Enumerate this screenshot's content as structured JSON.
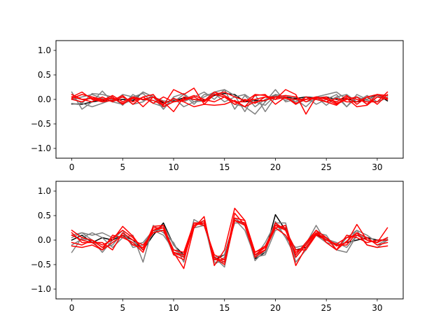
{
  "chart_data": [
    {
      "type": "line",
      "title": "",
      "xlabel": "",
      "ylabel": "",
      "xlim": [
        -1.55,
        32.55
      ],
      "ylim": [
        -1.2,
        1.2
      ],
      "xticks": [
        0,
        5,
        10,
        15,
        20,
        25,
        30
      ],
      "yticks": [
        -1.0,
        -0.5,
        0.0,
        0.5,
        1.0
      ],
      "x": [
        0,
        1,
        2,
        3,
        4,
        5,
        6,
        7,
        8,
        9,
        10,
        11,
        12,
        13,
        14,
        15,
        16,
        17,
        18,
        19,
        20,
        21,
        22,
        23,
        24,
        25,
        26,
        27,
        28,
        29,
        30,
        31
      ],
      "grid": false,
      "legend": "none",
      "series": [
        {
          "color": "#000000",
          "values": [
            -0.09,
            -0.1,
            -0.05,
            -0.02,
            -0.03,
            0.0,
            -0.03,
            0.15,
            0.05,
            -0.07,
            -0.03,
            0.03,
            0.0,
            -0.02,
            0.08,
            0.12,
            0.1,
            -0.05,
            -0.02,
            -0.03,
            0.1,
            0.05,
            0.02,
            0.05,
            0.03,
            0.05,
            0.0,
            0.02,
            -0.05,
            0.0,
            0.1,
            -0.03
          ]
        },
        {
          "color": "#808080",
          "values": [
            0.15,
            -0.2,
            -0.05,
            0.17,
            -0.05,
            -0.1,
            0.0,
            0.15,
            0.05,
            -0.2,
            0.03,
            -0.15,
            -0.05,
            0.05,
            0.15,
            0.2,
            0.08,
            -0.25,
            0.1,
            -0.25,
            0.05,
            0.03,
            -0.05,
            0.05,
            -0.1,
            0.0,
            0.1,
            -0.15,
            0.05,
            -0.1,
            0.05,
            0.08
          ]
        },
        {
          "color": "#808080",
          "values": [
            -0.1,
            -0.08,
            0.12,
            0.1,
            0.05,
            -0.12,
            0.1,
            -0.02,
            0.05,
            -0.03,
            -0.05,
            0.1,
            -0.1,
            0.1,
            0.1,
            0.05,
            -0.1,
            -0.15,
            -0.3,
            -0.05,
            0.2,
            -0.05,
            0.0,
            -0.15,
            0.05,
            0.1,
            0.15,
            0.0,
            0.05,
            -0.02,
            -0.05,
            0.03
          ]
        },
        {
          "color": "#808080",
          "values": [
            0.05,
            -0.08,
            -0.15,
            -0.08,
            0.0,
            0.05,
            -0.1,
            -0.05,
            0.1,
            -0.2,
            0.05,
            0.12,
            -0.05,
            -0.03,
            0.12,
            -0.05,
            0.05,
            0.1,
            -0.05,
            -0.12,
            0.08,
            -0.02,
            0.05,
            -0.05,
            0.0,
            -0.05,
            0.05,
            -0.15,
            0.1,
            0.0,
            0.08,
            0.0
          ]
        },
        {
          "color": "#808080",
          "values": [
            0.0,
            0.05,
            0.1,
            0.02,
            -0.05,
            0.1,
            0.05,
            0.12,
            -0.08,
            -0.15,
            0.0,
            -0.05,
            0.05,
            0.15,
            0.0,
            0.2,
            -0.2,
            0.08,
            -0.15,
            0.0,
            0.1,
            0.05,
            -0.1,
            0.0,
            0.05,
            -0.12,
            0.05,
            0.1,
            -0.05,
            0.08,
            -0.05,
            0.05
          ]
        },
        {
          "color": "#ff0000",
          "values": [
            0.05,
            0.15,
            0.0,
            -0.05,
            -0.02,
            0.08,
            -0.1,
            0.05,
            0.1,
            -0.15,
            -0.05,
            -0.02,
            0.05,
            -0.05,
            0.1,
            0.15,
            0.05,
            -0.02,
            0.0,
            0.05,
            0.05,
            0.08,
            0.05,
            -0.05,
            0.05,
            -0.05,
            0.02,
            -0.05,
            -0.05,
            0.05,
            0.1,
            0.08
          ]
        },
        {
          "color": "#ff0000",
          "values": [
            0.02,
            0.1,
            0.05,
            -0.05,
            0.05,
            -0.1,
            0.05,
            -0.15,
            0.05,
            -0.05,
            -0.25,
            0.05,
            0.0,
            -0.03,
            0.15,
            0.08,
            -0.05,
            -0.05,
            0.1,
            0.08,
            0.0,
            0.2,
            0.1,
            -0.3,
            0.05,
            0.0,
            -0.1,
            0.0,
            0.05,
            -0.1,
            0.1,
            0.02
          ]
        },
        {
          "color": "#ff0000",
          "values": [
            0.1,
            0.0,
            0.02,
            -0.02,
            0.08,
            -0.05,
            0.05,
            0.0,
            -0.02,
            -0.12,
            0.2,
            0.1,
            0.23,
            -0.1,
            0.1,
            0.05,
            -0.1,
            0.0,
            -0.08,
            0.05,
            0.0,
            0.05,
            -0.1,
            0.05,
            0.0,
            -0.05,
            -0.12,
            0.05,
            0.0,
            -0.05,
            -0.05,
            0.15
          ]
        },
        {
          "color": "#ff0000",
          "values": [
            0.05,
            0.0,
            -0.05,
            0.05,
            -0.05,
            0.05,
            -0.05,
            0.05,
            -0.08,
            0.05,
            -0.05,
            0.0,
            0.08,
            0.0,
            -0.05,
            0.05,
            -0.05,
            -0.15,
            0.08,
            0.1,
            -0.1,
            0.05,
            -0.08,
            0.0,
            0.05,
            0.02,
            -0.05,
            0.08,
            -0.1,
            0.05,
            -0.1,
            0.1
          ]
        },
        {
          "color": "#ff0000",
          "values": [
            0.0,
            -0.05,
            0.05,
            0.0,
            0.02,
            -0.08,
            0.02,
            0.0,
            0.05,
            -0.1,
            0.02,
            -0.05,
            -0.15,
            -0.1,
            -0.12,
            -0.1,
            -0.02,
            -0.15,
            -0.05,
            -0.02,
            0.05,
            0.02,
            0.0,
            0.0,
            0.02,
            0.05,
            -0.08,
            0.02,
            -0.15,
            -0.12,
            0.05,
            0.0
          ]
        }
      ]
    },
    {
      "type": "line",
      "title": "",
      "xlabel": "",
      "ylabel": "",
      "xlim": [
        -1.55,
        32.55
      ],
      "ylim": [
        -1.2,
        1.2
      ],
      "xticks": [
        0,
        5,
        10,
        15,
        20,
        25,
        30
      ],
      "yticks": [
        -1.0,
        -0.5,
        0.0,
        0.5,
        1.0
      ],
      "x": [
        0,
        1,
        2,
        3,
        4,
        5,
        6,
        7,
        8,
        9,
        10,
        11,
        12,
        13,
        14,
        15,
        16,
        17,
        18,
        19,
        20,
        21,
        22,
        23,
        24,
        25,
        26,
        27,
        28,
        29,
        30,
        31
      ],
      "grid": false,
      "legend": "none",
      "series": [
        {
          "color": "#000000",
          "values": [
            0.0,
            0.1,
            -0.05,
            0.05,
            0.0,
            0.1,
            0.0,
            -0.2,
            0.1,
            0.35,
            -0.1,
            -0.3,
            0.3,
            0.4,
            -0.4,
            -0.3,
            0.4,
            0.35,
            -0.38,
            -0.25,
            0.52,
            0.2,
            -0.2,
            -0.15,
            0.12,
            0.0,
            -0.1,
            -0.05,
            0.0,
            0.05,
            0.0,
            0.0
          ]
        },
        {
          "color": "#808080",
          "values": [
            -0.25,
            0.05,
            0.15,
            0.05,
            -0.15,
            0.05,
            0.1,
            -0.45,
            0.3,
            0.15,
            -0.05,
            -0.45,
            0.42,
            0.3,
            -0.35,
            -0.55,
            0.45,
            0.3,
            -0.42,
            -0.2,
            0.38,
            0.05,
            -0.35,
            -0.08,
            0.3,
            -0.05,
            -0.2,
            0.05,
            0.2,
            -0.1,
            -0.15,
            0.0
          ]
        },
        {
          "color": "#808080",
          "values": [
            0.1,
            0.15,
            0.1,
            0.15,
            0.05,
            0.08,
            -0.05,
            -0.2,
            0.15,
            0.3,
            -0.1,
            -0.35,
            0.35,
            0.35,
            -0.5,
            -0.35,
            0.42,
            0.2,
            -0.35,
            -0.05,
            0.35,
            0.05,
            -0.15,
            -0.1,
            0.15,
            0.02,
            -0.05,
            -0.15,
            0.1,
            0.0,
            -0.05,
            0.05
          ]
        },
        {
          "color": "#808080",
          "values": [
            -0.1,
            0.02,
            0.0,
            -0.25,
            0.0,
            0.2,
            -0.15,
            -0.1,
            0.2,
            0.2,
            -0.3,
            -0.3,
            0.35,
            0.35,
            -0.45,
            -0.45,
            0.4,
            0.35,
            -0.3,
            -0.25,
            0.35,
            0.35,
            -0.45,
            -0.2,
            0.15,
            0.1,
            -0.2,
            -0.25,
            0.1,
            0.05,
            -0.1,
            0.02
          ]
        },
        {
          "color": "#808080",
          "values": [
            0.05,
            0.15,
            0.0,
            -0.15,
            -0.1,
            0.15,
            -0.1,
            -0.05,
            0.2,
            0.1,
            -0.2,
            -0.3,
            0.25,
            0.3,
            -0.35,
            -0.3,
            0.35,
            0.35,
            -0.35,
            -0.3,
            0.2,
            0.25,
            -0.3,
            -0.05,
            0.1,
            -0.05,
            -0.1,
            -0.05,
            0.2,
            0.1,
            -0.05,
            0.05
          ]
        },
        {
          "color": "#ff0000",
          "values": [
            0.2,
            0.05,
            0.0,
            -0.1,
            0.0,
            0.28,
            0.08,
            -0.2,
            0.28,
            0.3,
            -0.25,
            -0.58,
            0.25,
            0.48,
            -0.52,
            -0.2,
            0.65,
            0.4,
            -0.25,
            -0.12,
            0.3,
            0.25,
            -0.52,
            -0.15,
            0.12,
            0.05,
            -0.12,
            -0.05,
            0.32,
            0.0,
            -0.05,
            0.25
          ]
        },
        {
          "color": "#ff0000",
          "values": [
            0.15,
            -0.05,
            -0.05,
            -0.2,
            0.1,
            0.05,
            -0.05,
            -0.25,
            0.25,
            0.25,
            -0.2,
            -0.25,
            0.35,
            0.35,
            -0.35,
            -0.45,
            0.55,
            0.3,
            -0.35,
            -0.2,
            0.35,
            0.2,
            -0.3,
            -0.05,
            0.2,
            0.05,
            -0.2,
            -0.02,
            0.15,
            0.05,
            -0.1,
            -0.05
          ]
        },
        {
          "color": "#ff0000",
          "values": [
            -0.05,
            -0.1,
            0.0,
            -0.15,
            0.05,
            0.2,
            0.05,
            -0.2,
            0.2,
            0.3,
            -0.3,
            -0.4,
            0.3,
            0.4,
            -0.4,
            -0.4,
            0.45,
            0.4,
            -0.25,
            -0.15,
            0.25,
            0.3,
            -0.35,
            -0.1,
            0.15,
            0.0,
            -0.08,
            0.05,
            0.1,
            0.0,
            -0.05,
            0.05
          ]
        },
        {
          "color": "#ff0000",
          "values": [
            -0.12,
            -0.15,
            -0.1,
            -0.2,
            -0.05,
            0.1,
            -0.1,
            -0.15,
            0.2,
            0.25,
            -0.25,
            -0.3,
            0.3,
            0.35,
            -0.35,
            -0.5,
            0.4,
            0.35,
            -0.3,
            -0.15,
            0.3,
            0.2,
            -0.2,
            -0.2,
            0.1,
            0.0,
            -0.1,
            -0.1,
            0.15,
            -0.1,
            -0.15,
            -0.12
          ]
        },
        {
          "color": "#ff0000",
          "values": [
            0.1,
            0.0,
            -0.05,
            -0.05,
            -0.2,
            0.15,
            0.0,
            -0.1,
            0.15,
            0.2,
            -0.25,
            -0.35,
            0.35,
            0.3,
            -0.3,
            -0.4,
            0.4,
            0.3,
            -0.3,
            -0.2,
            0.25,
            0.1,
            -0.25,
            -0.1,
            0.2,
            -0.05,
            -0.2,
            0.1,
            0.05,
            -0.05,
            0.0,
            0.0
          ]
        }
      ]
    }
  ]
}
